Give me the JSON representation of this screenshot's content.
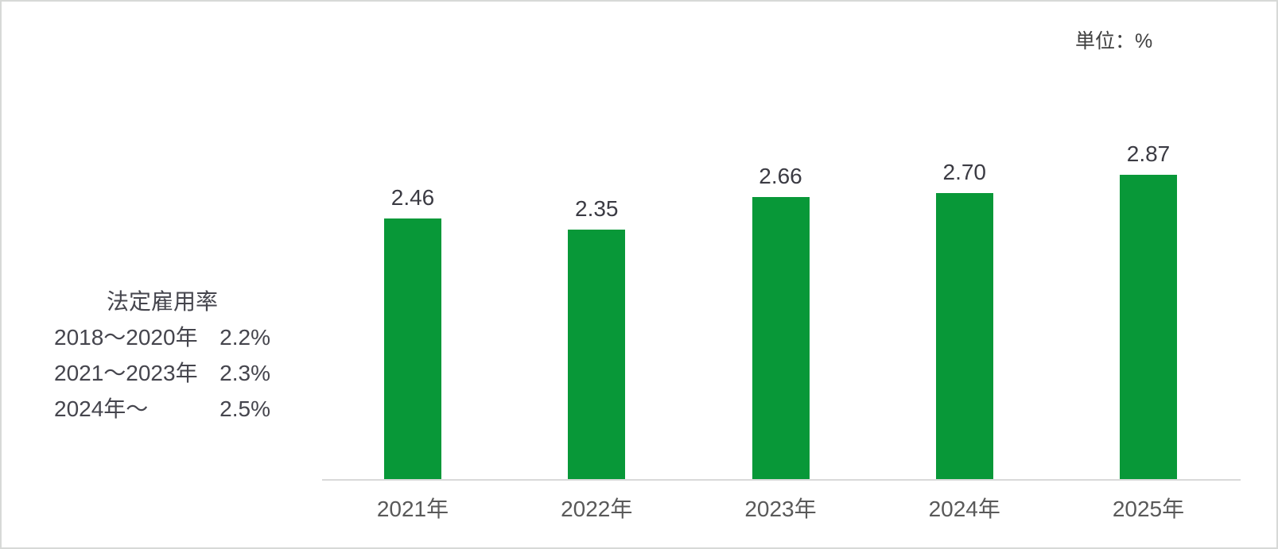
{
  "unit_label": "単位：%",
  "legend": {
    "title": "法定雇用率",
    "rows": [
      {
        "range": "2018〜2020年",
        "rate": "2.2%"
      },
      {
        "range": "2021〜2023年",
        "rate": "2.3%"
      },
      {
        "range": "2024年〜",
        "rate": "2.5%"
      }
    ]
  },
  "chart_data": {
    "type": "bar",
    "categories": [
      "2021年",
      "2022年",
      "2023年",
      "2024年",
      "2025年"
    ],
    "values": [
      2.46,
      2.35,
      2.66,
      2.7,
      2.87
    ],
    "value_labels": [
      "2.46",
      "2.35",
      "2.66",
      "2.70",
      "2.87"
    ],
    "title": "",
    "xlabel": "",
    "ylabel": "",
    "unit": "%",
    "grid": false,
    "legend_position": "left",
    "bar_color": "#089838",
    "axis_line_color": "#d9d9d9",
    "annotations": [
      "法定雇用率",
      "2018〜2020年 2.2%",
      "2021〜2023年 2.3%",
      "2024年〜 2.5%",
      "単位：%"
    ]
  },
  "colors": {
    "bar": "#089838",
    "value_label_text": "#3b3b43",
    "axis_label_text": "#595959",
    "legend_text": "#45454d",
    "unit_text": "#404040",
    "axis_line": "#d9d9d9",
    "background": "#ffffff",
    "border": "#d7d9d7"
  }
}
